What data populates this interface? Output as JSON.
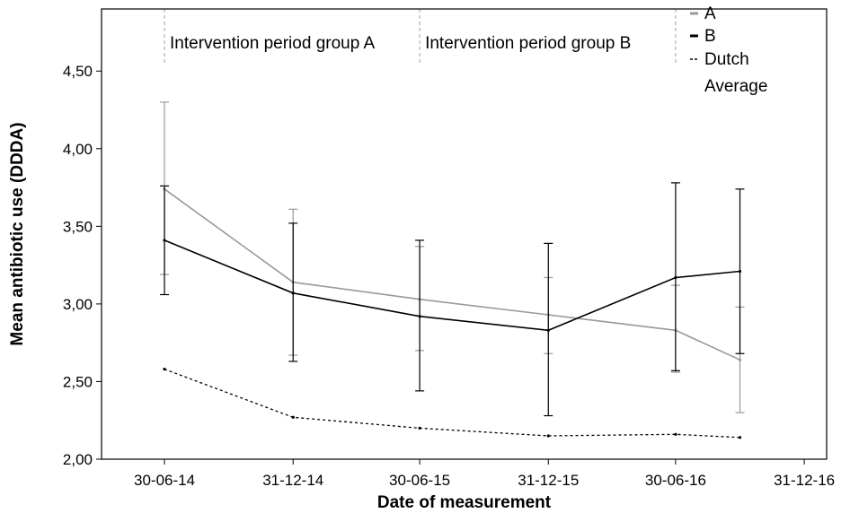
{
  "chart_data": {
    "type": "line",
    "xlabel": "Date of measurement",
    "ylabel": "Mean antibiotic use (DDDA)",
    "xlim": [
      "2014-04-01",
      "2017-02-01"
    ],
    "ylim": [
      2.0,
      4.9
    ],
    "y_ticks": [
      2.0,
      2.5,
      3.0,
      3.5,
      4.0,
      4.5
    ],
    "y_tick_labels": [
      "2,00",
      "2,50",
      "3,00",
      "3,50",
      "4,00",
      "4,50"
    ],
    "x_ticks": [
      "2014-06-30",
      "2014-12-31",
      "2015-06-30",
      "2015-12-31",
      "2016-06-30",
      "2016-12-31"
    ],
    "x_tick_labels": [
      "30-06-14",
      "31-12-14",
      "30-06-15",
      "31-12-15",
      "30-06-16",
      "31-12-16"
    ],
    "grid": false,
    "legend_position": "top-right",
    "periods": [
      {
        "label": "Intervention period group A",
        "start": "2014-06-30",
        "end": "2015-06-30"
      },
      {
        "label": "Intervention period group B",
        "start": "2015-06-30",
        "end": "2016-06-30"
      }
    ],
    "series": [
      {
        "name": "A",
        "color": "#999999",
        "style": "solid",
        "x": [
          "2014-06-30",
          "2014-12-31",
          "2015-06-30",
          "2015-12-31",
          "2016-06-30",
          "2016-09-30"
        ],
        "y": [
          3.74,
          3.14,
          3.03,
          2.93,
          2.83,
          2.64
        ],
        "err_low": [
          3.19,
          2.67,
          2.7,
          2.68,
          2.56,
          2.3
        ],
        "err_high": [
          4.3,
          3.61,
          3.37,
          3.17,
          3.12,
          2.98
        ]
      },
      {
        "name": "B",
        "color": "#000000",
        "style": "solid",
        "x": [
          "2014-06-30",
          "2014-12-31",
          "2015-06-30",
          "2015-12-31",
          "2016-06-30",
          "2016-09-30"
        ],
        "y": [
          3.41,
          3.07,
          2.92,
          2.83,
          3.17,
          3.21
        ],
        "err_low": [
          3.06,
          2.63,
          2.44,
          2.28,
          2.57,
          2.68
        ],
        "err_high": [
          3.76,
          3.52,
          3.41,
          3.39,
          3.78,
          3.74
        ]
      },
      {
        "name": "Dutch Average",
        "color": "#000000",
        "style": "dashed",
        "x": [
          "2014-06-30",
          "2014-12-31",
          "2015-06-30",
          "2015-12-31",
          "2016-06-30",
          "2016-09-30"
        ],
        "y": [
          2.58,
          2.27,
          2.2,
          2.15,
          2.16,
          2.14
        ]
      }
    ]
  }
}
